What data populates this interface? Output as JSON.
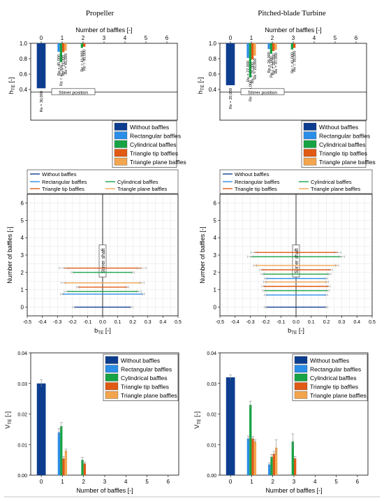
{
  "headers": {
    "left": "Propeller",
    "right": "Pitched-blade Turbine"
  },
  "colors": {
    "without": "#0d3d8f",
    "rectangular": "#2b8ee8",
    "cylindrical": "#17a345",
    "triangle_tip": "#e05a14",
    "triangle_plane": "#f3a54e",
    "shaft": "#000000",
    "grid": "#dcdcdc"
  },
  "legend_labels": [
    "Without baffles",
    "Rectangular baffles",
    "Cylindrical baffles",
    "Triangle tip baffles",
    "Triangle plane baffles"
  ],
  "annotations": {
    "stirrer_position": "Stirrer position",
    "stirrer_shaft": "Stirrer shaft"
  },
  "chart_data": [
    {
      "id": "h_prop",
      "type": "bar",
      "xlabel": "Number of baffles [-]",
      "ylabel": "h_TE [-]",
      "xlim": [
        -0.5,
        6.5
      ],
      "ylim": [
        0,
        1.0
      ],
      "xticks": [
        0,
        1,
        2,
        3,
        4,
        5,
        6
      ],
      "yticks": [
        0.4,
        0.6,
        0.8,
        1.0
      ],
      "stirrer_position": 0.365,
      "series": [
        {
          "name": "Without baffles",
          "x": [
            0
          ],
          "values": [
            0.415
          ],
          "labels": [
            "Re = 30,000"
          ]
        },
        {
          "name": "Rectangular baffles",
          "x": [
            1
          ],
          "values": [
            0.89
          ],
          "labels": [
            "Re = 45,000"
          ]
        },
        {
          "name": "Cylindrical baffles",
          "x": [
            1,
            2
          ],
          "values": [
            0.755,
            0.94
          ],
          "labels": [
            "Re = 42,000",
            "Re = 41,000"
          ]
        },
        {
          "name": "Triangle tip baffles",
          "x": [
            1,
            2
          ],
          "values": [
            0.885,
            0.955
          ],
          "labels": [
            "Re = 29,000",
            "Re = 45,000"
          ]
        },
        {
          "name": "Triangle plane baffles",
          "x": [
            1
          ],
          "values": [
            0.905
          ],
          "labels": [
            "Re = 45,000"
          ]
        }
      ]
    },
    {
      "id": "h_pbt",
      "type": "bar",
      "xlabel": "Number of baffles [-]",
      "ylabel": "h_TE [-]",
      "xlim": [
        -0.5,
        6.5
      ],
      "ylim": [
        0,
        1.0
      ],
      "xticks": [
        0,
        1,
        2,
        3,
        4,
        5,
        6
      ],
      "yticks": [
        0.4,
        0.6,
        0.8,
        1.0
      ],
      "stirrer_position": 0.365,
      "series": [
        {
          "name": "Without baffles",
          "x": [
            0
          ],
          "values": [
            0.455
          ],
          "labels": [
            "Re = 20,000"
          ]
        },
        {
          "name": "Rectangular baffles",
          "x": [
            1,
            2
          ],
          "values": [
            0.81,
            0.925
          ],
          "labels": [
            "Re = 22,000",
            "Re = 26,000"
          ]
        },
        {
          "name": "Cylindrical baffles",
          "x": [
            1,
            2,
            3
          ],
          "values": [
            0.555,
            0.865,
            0.92
          ],
          "labels": [
            "Re = 26,000",
            "Re = 21,000",
            "Re = 41,000"
          ]
        },
        {
          "name": "Triangle tip baffles",
          "x": [
            1,
            2,
            3
          ],
          "values": [
            0.79,
            0.9,
            0.94
          ],
          "labels": [
            "Re = 20,000",
            "Re = 28,000",
            "Re = 35,000"
          ]
        },
        {
          "name": "Triangle plane baffles",
          "x": [
            1,
            2
          ],
          "values": [
            0.84,
            0.915
          ],
          "labels": [
            "Re = 20,000",
            "Re = 37,000"
          ]
        }
      ]
    },
    {
      "id": "b_prop",
      "type": "scatter",
      "xlabel": "b_TE [-]",
      "ylabel": "Number of baffles [-]",
      "xlim": [
        -0.5,
        0.5
      ],
      "ylim": [
        -0.5,
        6.5
      ],
      "xticks": [
        -0.5,
        -0.4,
        -0.3,
        -0.2,
        -0.1,
        0.0,
        0.1,
        0.2,
        0.3,
        0.4,
        0.5
      ],
      "yticks": [
        0,
        1,
        2,
        3,
        4,
        5,
        6
      ],
      "series": [
        {
          "name": "Without baffles",
          "y": [
            0
          ],
          "x_min": [
            -0.19
          ],
          "x_max": [
            0.19
          ],
          "err": [
            0.01
          ]
        },
        {
          "name": "Rectangular baffles",
          "y": [
            0.75
          ],
          "x_min": [
            -0.27
          ],
          "x_max": [
            0.27
          ],
          "err": [
            0.01
          ]
        },
        {
          "name": "Cylindrical baffles",
          "y": [
            0.9,
            2.0
          ],
          "x_min": [
            -0.24,
            -0.2
          ],
          "x_max": [
            0.24,
            0.2
          ],
          "err": [
            0.015,
            0.01
          ]
        },
        {
          "name": "Triangle tip baffles",
          "y": [
            1.15,
            2.25
          ],
          "x_min": [
            -0.165,
            -0.26
          ],
          "x_max": [
            0.165,
            0.26
          ],
          "err": [
            0.01,
            0.03
          ]
        },
        {
          "name": "Triangle plane baffles",
          "y": [
            1.4
          ],
          "x_min": [
            -0.26
          ],
          "x_max": [
            0.26
          ],
          "err": [
            0.015
          ]
        }
      ]
    },
    {
      "id": "b_pbt",
      "type": "scatter",
      "xlabel": "b_TE [-]",
      "ylabel": "Number of baffles [-]",
      "xlim": [
        -0.5,
        0.5
      ],
      "ylim": [
        -0.5,
        6.5
      ],
      "xticks": [
        -0.5,
        -0.4,
        -0.3,
        -0.2,
        -0.1,
        0.0,
        0.1,
        0.2,
        0.3,
        0.4,
        0.5
      ],
      "yticks": [
        0,
        1,
        2,
        3,
        4,
        5,
        6
      ],
      "series": [
        {
          "name": "Without baffles",
          "y": [
            0
          ],
          "x_min": [
            -0.2
          ],
          "x_max": [
            0.2
          ],
          "err": [
            0.01
          ]
        },
        {
          "name": "Rectangular baffles",
          "y": [
            0.7,
            1.65
          ],
          "x_min": [
            -0.2,
            -0.2
          ],
          "x_max": [
            0.2,
            0.2
          ],
          "err": [
            0.01,
            0.01
          ]
        },
        {
          "name": "Cylindrical baffles",
          "y": [
            0.95,
            1.9,
            2.9
          ],
          "x_min": [
            -0.21,
            -0.22,
            -0.3
          ],
          "x_max": [
            0.21,
            0.22,
            0.3
          ],
          "err": [
            0.01,
            0.01,
            0.02
          ]
        },
        {
          "name": "Triangle tip baffles",
          "y": [
            1.2,
            2.15,
            3.15
          ],
          "x_min": [
            -0.215,
            -0.23,
            -0.275
          ],
          "x_max": [
            0.215,
            0.23,
            0.275
          ],
          "err": [
            0.01,
            0.01,
            0.02
          ]
        },
        {
          "name": "Triangle plane baffles",
          "y": [
            1.45,
            2.4
          ],
          "x_min": [
            -0.205,
            -0.27
          ],
          "x_max": [
            0.205,
            0.27
          ],
          "err": [
            0.01,
            0.01
          ]
        }
      ]
    },
    {
      "id": "v_prop",
      "type": "bar",
      "xlabel": "Number of baffles [-]",
      "ylabel": "V_TE [-]",
      "xlim": [
        -0.5,
        6.5
      ],
      "ylim": [
        0,
        0.04
      ],
      "xticks": [
        0,
        1,
        2,
        3,
        4,
        5,
        6
      ],
      "yticks": [
        0.0,
        0.01,
        0.02,
        0.03,
        0.04
      ],
      "series": [
        {
          "name": "Without baffles",
          "x": [
            0
          ],
          "values": [
            0.03
          ],
          "err": [
            0.0012
          ]
        },
        {
          "name": "Rectangular baffles",
          "x": [
            1
          ],
          "values": [
            0.014
          ],
          "err": [
            0.0012
          ]
        },
        {
          "name": "Cylindrical baffles",
          "x": [
            1,
            2
          ],
          "values": [
            0.016,
            0.005
          ],
          "err": [
            0.0012,
            0.0008
          ]
        },
        {
          "name": "Triangle tip baffles",
          "x": [
            1,
            2
          ],
          "values": [
            0.0055,
            0.0038
          ],
          "err": [
            0.0006,
            0.0005
          ]
        },
        {
          "name": "Triangle plane baffles",
          "x": [
            1
          ],
          "values": [
            0.008
          ],
          "err": [
            0.0005
          ]
        }
      ]
    },
    {
      "id": "v_pbt",
      "type": "bar",
      "xlabel": "Number of baffles [-]",
      "ylabel": "V_TE [-]",
      "xlim": [
        -0.5,
        6.5
      ],
      "ylim": [
        0,
        0.04
      ],
      "xticks": [
        0,
        1,
        2,
        3,
        4,
        5,
        6
      ],
      "yticks": [
        0.0,
        0.01,
        0.02,
        0.03,
        0.04
      ],
      "series": [
        {
          "name": "Without baffles",
          "x": [
            0
          ],
          "values": [
            0.032
          ],
          "err": [
            0.0008
          ]
        },
        {
          "name": "Rectangular baffles",
          "x": [
            1,
            2
          ],
          "values": [
            0.012,
            0.0035
          ],
          "err": [
            0.0008,
            0.0005
          ]
        },
        {
          "name": "Cylindrical baffles",
          "x": [
            1,
            2,
            3
          ],
          "values": [
            0.023,
            0.006,
            0.011
          ],
          "err": [
            0.0012,
            0.0008,
            0.0025
          ]
        },
        {
          "name": "Triangle tip baffles",
          "x": [
            1,
            2,
            3
          ],
          "values": [
            0.012,
            0.007,
            0.0055
          ],
          "err": [
            0.0006,
            0.0008,
            0.0006
          ]
        },
        {
          "name": "Triangle plane baffles",
          "x": [
            1,
            2
          ],
          "values": [
            0.011,
            0.009
          ],
          "err": [
            0.0006,
            0.0025
          ]
        }
      ]
    }
  ]
}
